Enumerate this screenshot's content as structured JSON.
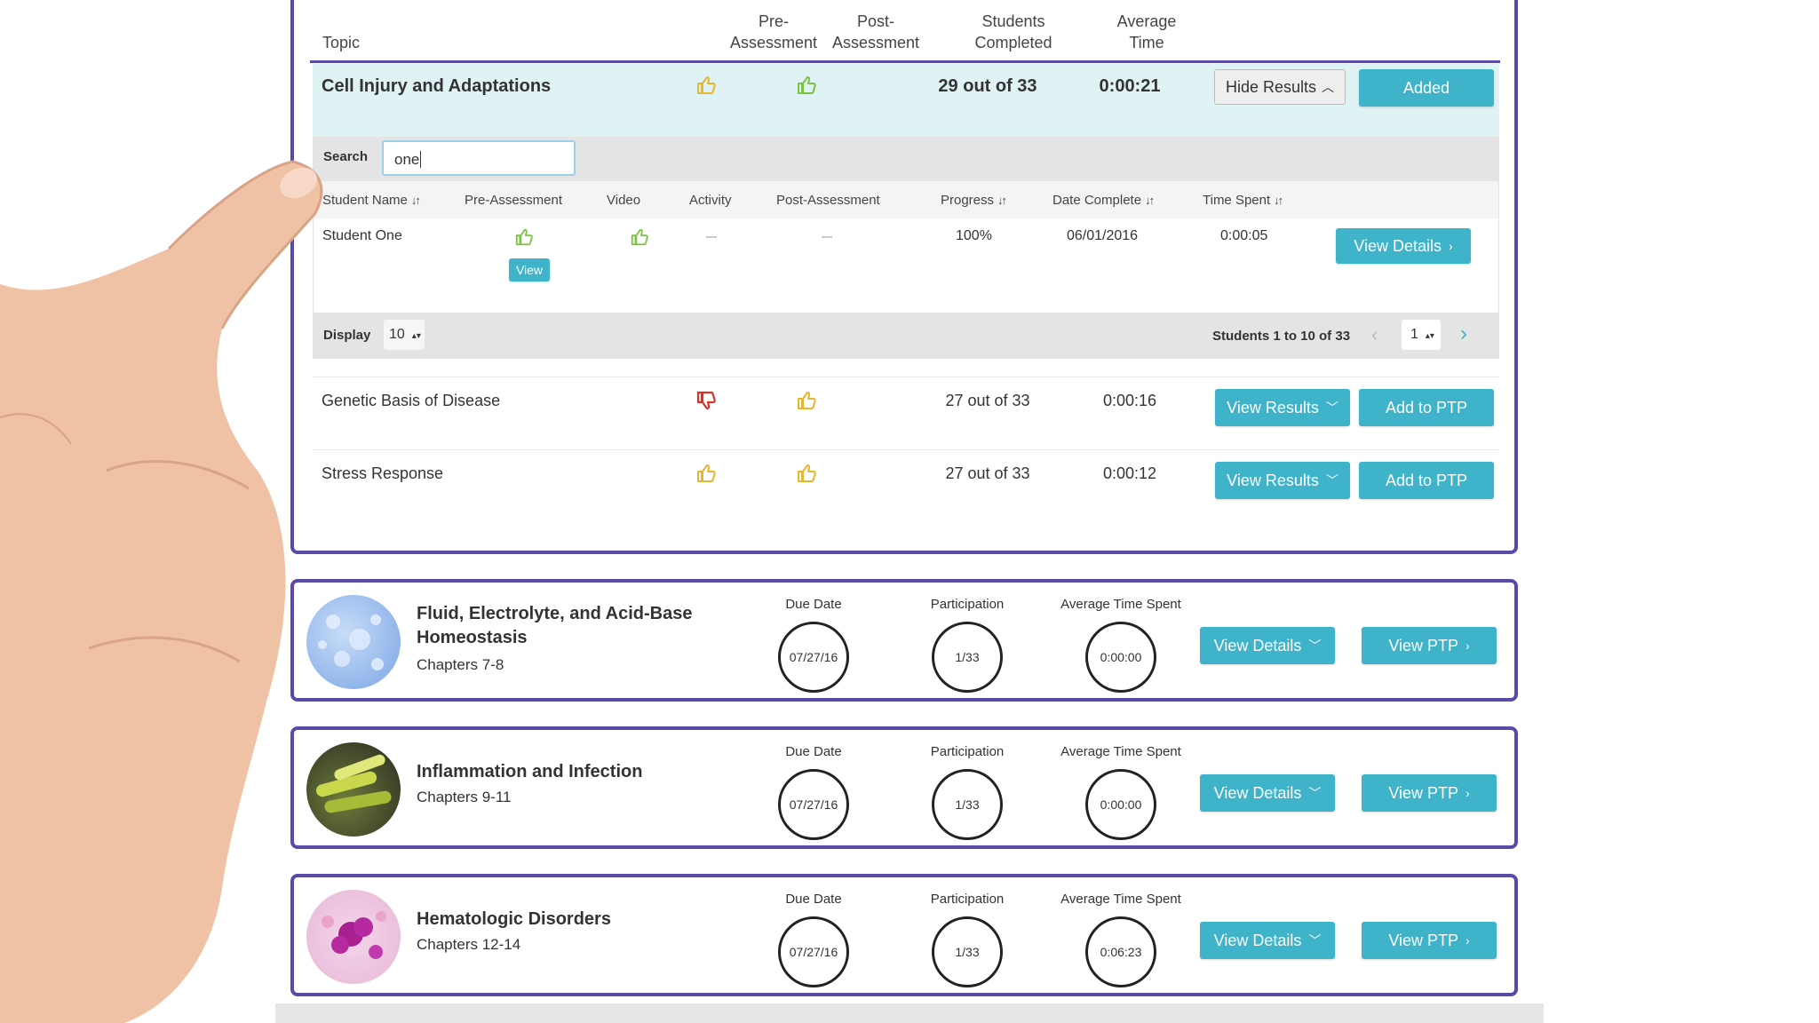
{
  "headers": {
    "topic": "Topic",
    "pre": "Pre-\nAssessment",
    "post": "Post-\nAssessment",
    "students": "Students\nCompleted",
    "avg_time": "Average\nTime"
  },
  "expanded_topic": {
    "name": "Cell Injury and Adaptations",
    "students_completed": "29 out of 33",
    "avg_time": "0:00:21",
    "hide_results": "Hide Results",
    "added": "Added",
    "search_label": "Search",
    "search_value": "one",
    "columns": [
      "Student Name",
      "Pre-Assessment",
      "Video",
      "Activity",
      "Post-Assessment",
      "Progress",
      "Date Complete",
      "Time Spent"
    ],
    "student": {
      "name": "Student One",
      "view": "View",
      "progress": "100%",
      "date_complete": "06/01/2016",
      "time_spent": "0:00:05",
      "view_details": "View Details"
    },
    "display_label": "Display",
    "display_value": "10",
    "pagination_text": "Students 1 to 10 of 33",
    "page_value": "1"
  },
  "topics": [
    {
      "name": "Genetic Basis of Disease",
      "pre": "thumbs-down",
      "post": "thumbs-up",
      "students_completed": "27 out of 33",
      "avg_time": "0:00:16",
      "view_results": "View Results",
      "add": "Add to PTP"
    },
    {
      "name": "Stress Response",
      "pre": "thumbs-up",
      "post": "thumbs-up",
      "students_completed": "27 out of 33",
      "avg_time": "0:00:12",
      "view_results": "View Results",
      "add": "Add to PTP"
    }
  ],
  "modules": [
    {
      "title": "Fluid, Electrolyte, and Acid-Base\nHomeostasis",
      "chapters": "Chapters 7-8",
      "due_label": "Due Date",
      "due": "07/27/16",
      "part_label": "Participation",
      "participation": "1/33",
      "time_label": "Average Time Spent",
      "time": "0:00:00",
      "details": "View Details",
      "ptp": "View PTP",
      "image": "water-droplets"
    },
    {
      "title": "Inflammation and Infection",
      "chapters": "Chapters 9-11",
      "due_label": "Due Date",
      "due": "07/27/16",
      "part_label": "Participation",
      "participation": "1/33",
      "time_label": "Average Time Spent",
      "time": "0:00:00",
      "details": "View Details",
      "ptp": "View PTP",
      "image": "bacteria"
    },
    {
      "title": "Hematologic Disorders",
      "chapters": "Chapters 12-14",
      "due_label": "Due Date",
      "due": "07/27/16",
      "part_label": "Participation",
      "participation": "1/33",
      "time_label": "Average Time Spent",
      "time": "0:06:23",
      "details": "View Details",
      "ptp": "View PTP",
      "image": "blood-cells"
    }
  ],
  "colors": {
    "accent": "#3eb3c9",
    "border": "#5a4aa8",
    "thumb_yellow": "#e8b730",
    "thumb_green": "#7cc242",
    "thumb_red": "#d9342b",
    "highlight": "#dff2f4"
  }
}
